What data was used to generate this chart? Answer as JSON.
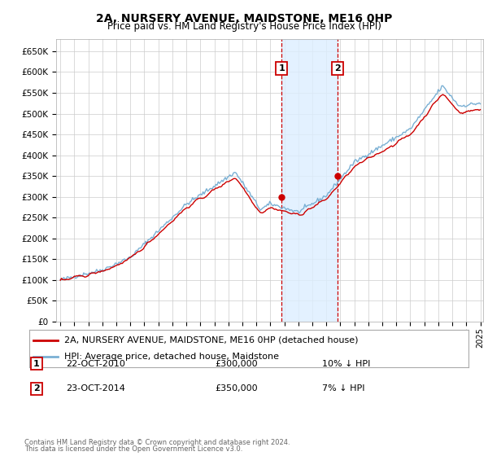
{
  "title": "2A, NURSERY AVENUE, MAIDSTONE, ME16 0HP",
  "subtitle": "Price paid vs. HM Land Registry's House Price Index (HPI)",
  "ylabel_ticks": [
    "£0",
    "£50K",
    "£100K",
    "£150K",
    "£200K",
    "£250K",
    "£300K",
    "£350K",
    "£400K",
    "£450K",
    "£500K",
    "£550K",
    "£600K",
    "£650K"
  ],
  "ytick_values": [
    0,
    50000,
    100000,
    150000,
    200000,
    250000,
    300000,
    350000,
    400000,
    450000,
    500000,
    550000,
    600000,
    650000
  ],
  "ylim": [
    0,
    680000
  ],
  "x_start_year": 1995,
  "x_end_year": 2025,
  "sale1_year": 2010.8,
  "sale1_price": 300000,
  "sale1_label": "22-OCT-2010",
  "sale1_pct": "10% ↓ HPI",
  "sale2_year": 2014.8,
  "sale2_price": 350000,
  "sale2_label": "23-OCT-2014",
  "sale2_pct": "7% ↓ HPI",
  "line_color_red": "#cc0000",
  "line_color_blue": "#7ab0d4",
  "shade_color": "#ddeeff",
  "dashed_color": "#cc0000",
  "legend_label_red": "2A, NURSERY AVENUE, MAIDSTONE, ME16 0HP (detached house)",
  "legend_label_blue": "HPI: Average price, detached house, Maidstone",
  "footer_line1": "Contains HM Land Registry data © Crown copyright and database right 2024.",
  "footer_line2": "This data is licensed under the Open Government Licence v3.0.",
  "background_color": "#ffffff",
  "grid_color": "#cccccc"
}
